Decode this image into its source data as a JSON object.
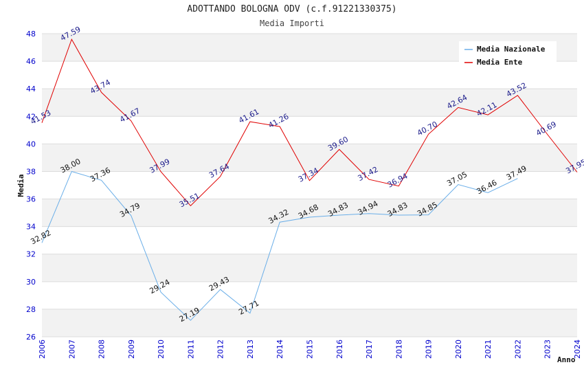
{
  "chart_data": {
    "type": "line",
    "title": "ADOTTANDO BOLOGNA ODV (c.f.91221330375)",
    "subtitle": "Media Importi",
    "xlabel": "Anno",
    "ylabel": "Media",
    "ylim": [
      26,
      48
    ],
    "yticks": [
      26,
      28,
      30,
      32,
      34,
      36,
      38,
      40,
      42,
      44,
      46,
      48
    ],
    "categories": [
      "2006",
      "2007",
      "2008",
      "2009",
      "2010",
      "2011",
      "2012",
      "2013",
      "2014",
      "2015",
      "2016",
      "2017",
      "2018",
      "2019",
      "2020",
      "2021",
      "2022",
      "2023",
      "2024"
    ],
    "legend_position": "top-right",
    "series": [
      {
        "name": "Media Nazionale",
        "color": "#6aaee8",
        "values": [
          32.82,
          38.0,
          37.36,
          34.79,
          29.24,
          27.19,
          29.43,
          27.71,
          34.32,
          34.68,
          34.83,
          34.94,
          34.83,
          34.85,
          37.05,
          36.46,
          37.49,
          null,
          null
        ],
        "labels": [
          "32.82",
          "38.00",
          "37.36",
          "34.79",
          "29.24",
          "27.19",
          "29.43",
          "27.71",
          "34.32",
          "34.68",
          "34.83",
          "34.94",
          "34.83",
          "34.85",
          "37.05",
          "36.46",
          "37.49",
          null,
          null
        ]
      },
      {
        "name": "Media Ente",
        "color": "#e00000",
        "values": [
          41.53,
          47.59,
          43.74,
          41.67,
          37.99,
          35.51,
          37.64,
          41.61,
          41.26,
          37.34,
          39.6,
          37.42,
          36.94,
          40.7,
          42.64,
          42.11,
          43.52,
          40.69,
          37.95
        ],
        "labels": [
          "41.53",
          "47.59",
          "43.74",
          "41.67",
          "37.99",
          "35.51",
          "37.64",
          "41.61",
          "41.26",
          "37.34",
          "39.60",
          "37.42",
          "36.94",
          "40.70",
          "42.64",
          "42.11",
          "43.52",
          "40.69",
          "37.95"
        ]
      }
    ]
  }
}
